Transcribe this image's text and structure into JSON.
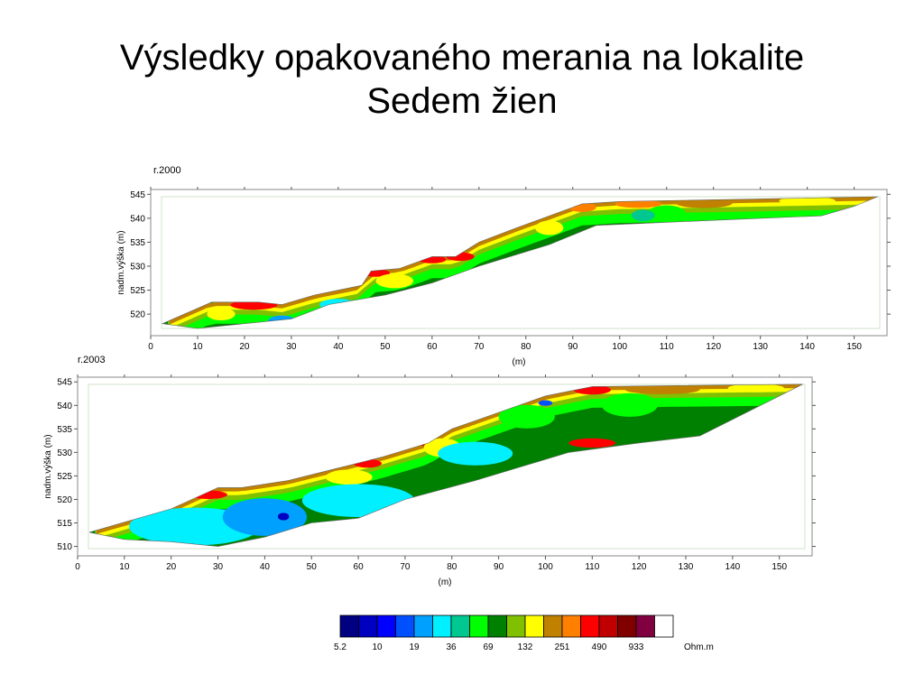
{
  "slide": {
    "title_line1": "Výsledky opakovaného merania na lokalite",
    "title_line2": "Sedem žien"
  },
  "chart_data": [
    {
      "type": "heatmap",
      "title": "r.2000",
      "xlabel": "(m)",
      "ylabel": "nadm.výška (m)",
      "xlim": [
        0,
        157
      ],
      "ylim": [
        515.5,
        546
      ],
      "x_ticks": [
        0,
        10,
        20,
        30,
        40,
        50,
        60,
        70,
        80,
        90,
        100,
        110,
        120,
        130,
        140,
        150
      ],
      "y_ticks": [
        520,
        525,
        530,
        535,
        540,
        545
      ],
      "profile_top": [
        [
          2.5,
          518
        ],
        [
          13,
          522.5
        ],
        [
          23,
          522.5
        ],
        [
          28,
          522
        ],
        [
          35,
          524
        ],
        [
          45,
          526
        ],
        [
          47,
          529
        ],
        [
          53,
          529.5
        ],
        [
          60,
          532
        ],
        [
          65,
          532
        ],
        [
          70,
          535
        ],
        [
          78,
          538
        ],
        [
          92,
          543
        ],
        [
          100,
          543.5
        ],
        [
          155,
          544.5
        ]
      ],
      "profile_bottom": [
        [
          155,
          544.5
        ],
        [
          150,
          542.5
        ],
        [
          143,
          540.5
        ],
        [
          130,
          540
        ],
        [
          95,
          538.5
        ],
        [
          85,
          534.5
        ],
        [
          70,
          530
        ],
        [
          60,
          526.5
        ],
        [
          50,
          524
        ],
        [
          38,
          522
        ],
        [
          30,
          519
        ],
        [
          20,
          518
        ],
        [
          10,
          517
        ],
        [
          2.5,
          518
        ]
      ]
    },
    {
      "type": "heatmap",
      "title": "r.2003",
      "xlabel": "(m)",
      "ylabel": "nadm.výška (m)",
      "xlim": [
        0,
        157
      ],
      "ylim": [
        508,
        546
      ],
      "x_ticks": [
        0,
        10,
        20,
        30,
        40,
        50,
        60,
        70,
        80,
        90,
        100,
        110,
        120,
        130,
        140,
        150
      ],
      "y_ticks": [
        510,
        515,
        520,
        525,
        530,
        535,
        540,
        545
      ],
      "profile_top": [
        [
          2.5,
          513
        ],
        [
          20,
          518
        ],
        [
          30,
          522.5
        ],
        [
          35,
          522.5
        ],
        [
          45,
          524
        ],
        [
          55,
          526.5
        ],
        [
          65,
          529
        ],
        [
          75,
          532
        ],
        [
          80,
          535
        ],
        [
          90,
          538.5
        ],
        [
          100,
          542
        ],
        [
          110,
          544
        ],
        [
          155,
          544.5
        ]
      ],
      "profile_bottom": [
        [
          155,
          544.5
        ],
        [
          150,
          542
        ],
        [
          133,
          533.5
        ],
        [
          120,
          532
        ],
        [
          105,
          530
        ],
        [
          95,
          527
        ],
        [
          85,
          524
        ],
        [
          70,
          520
        ],
        [
          60,
          516
        ],
        [
          50,
          515
        ],
        [
          40,
          512
        ],
        [
          30,
          510
        ],
        [
          20,
          511
        ],
        [
          10,
          511.5
        ],
        [
          2.5,
          513
        ]
      ]
    }
  ],
  "legend": {
    "unit": "Ohm.m",
    "labels": [
      "5.2",
      "10",
      "19",
      "36",
      "69",
      "132",
      "251",
      "490",
      "933"
    ],
    "colors": [
      "#000080",
      "#0000c0",
      "#0000ff",
      "#0050ff",
      "#00a0ff",
      "#00f0ff",
      "#00c890",
      "#00ff00",
      "#008000",
      "#80c000",
      "#ffff00",
      "#c08000",
      "#ff8000",
      "#ff0000",
      "#c00000",
      "#800000",
      "#800040",
      "#ffffff"
    ]
  }
}
